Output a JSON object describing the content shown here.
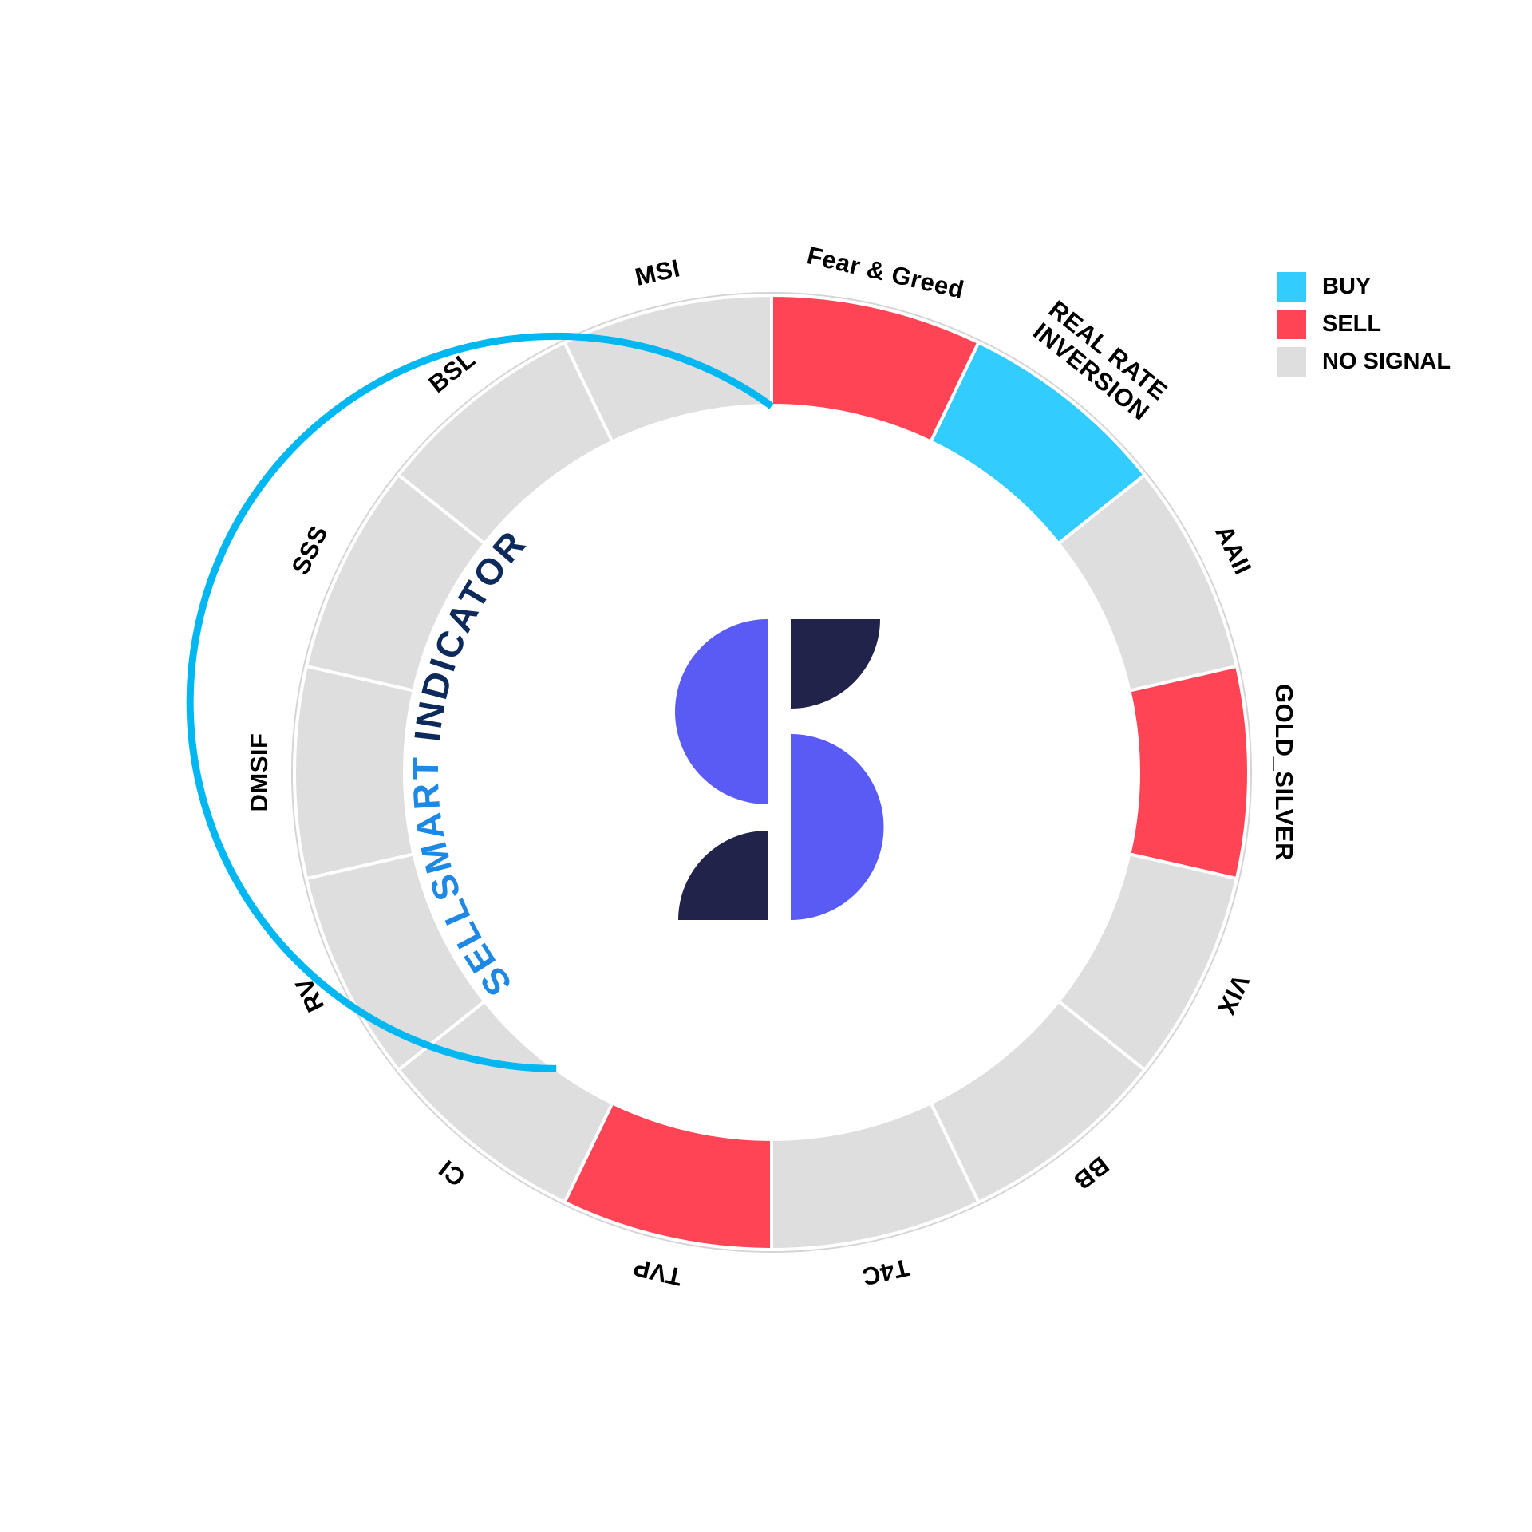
{
  "colors": {
    "buy": "#33CCFF",
    "sell": "#FF4455",
    "no_signal": "#DEDEDE",
    "progress_arc": "#00B7F1",
    "brand_light": "#1E88E5",
    "brand_dark": "#0D2A5C",
    "logo_violet": "#5A5AF5",
    "logo_navy": "#22234A"
  },
  "legend": {
    "items": [
      {
        "key": "buy",
        "label": "BUY"
      },
      {
        "key": "sell",
        "label": "SELL"
      },
      {
        "key": "no_signal",
        "label": "NO SIGNAL"
      }
    ]
  },
  "brand": {
    "text_part1": "SELLSMART",
    "text_part2": "INDICATOR",
    "logo": "sellsmart-logo-icon"
  },
  "chart_data": {
    "type": "pie",
    "subtype": "donut",
    "segment_count": 14,
    "segments": [
      {
        "label": "Fear & Greed",
        "signal": "sell"
      },
      {
        "label": "REAL RATE INVERSION",
        "lines": [
          "REAL RATE",
          "INVERSION"
        ],
        "signal": "buy"
      },
      {
        "label": "AAII",
        "signal": "no_signal"
      },
      {
        "label": "GOLD_SILVER",
        "signal": "sell"
      },
      {
        "label": "VIX",
        "signal": "no_signal"
      },
      {
        "label": "BB",
        "signal": "no_signal"
      },
      {
        "label": "T4C",
        "signal": "no_signal"
      },
      {
        "label": "TVP",
        "signal": "sell"
      },
      {
        "label": "CI",
        "signal": "no_signal"
      },
      {
        "label": "RV",
        "signal": "no_signal"
      },
      {
        "label": "DMSIF",
        "signal": "no_signal"
      },
      {
        "label": "SSS",
        "signal": "no_signal"
      },
      {
        "label": "BSL",
        "signal": "no_signal"
      },
      {
        "label": "MSI",
        "signal": "no_signal"
      }
    ],
    "progress_fraction": 0.6
  }
}
